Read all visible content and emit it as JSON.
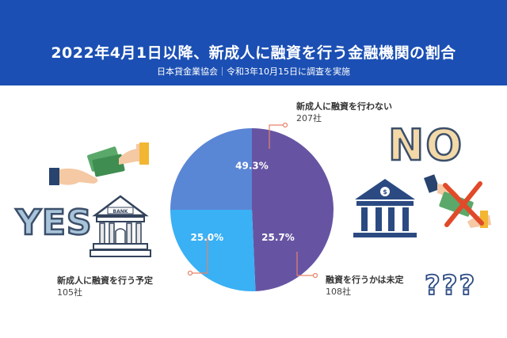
{
  "header": {
    "title": "2022年4月1日以降、新成人に融資を行う金融機関の割合",
    "subtitle": "日本貸金業協会｜令和3年10月15日に調査を実施"
  },
  "chart_data": {
    "type": "pie",
    "title": "2022年4月1日以降、新成人に融資を行う金融機関の割合",
    "slices": [
      {
        "label": "新成人に融資を行わない",
        "count": "207社",
        "value": 49.3,
        "value_label": "49.3%",
        "color": "#6654a3"
      },
      {
        "label": "融資を行うかは未定",
        "count": "108社",
        "value": 25.7,
        "value_label": "25.7%",
        "color": "#3ab0f5"
      },
      {
        "label": "新成人に融資を行う予定",
        "count": "105社",
        "value": 25.0,
        "value_label": "25.0%",
        "color": "#5a86d6"
      }
    ]
  },
  "decor": {
    "yes_text": "YES",
    "no_text": "NO",
    "bank_sign": "BANK",
    "question_marks": "???"
  },
  "colors": {
    "header_bg": "#1b4fb3",
    "connector": "#e6836a",
    "yes_fill": "#a9c4d9",
    "no_fill": "#f3d9a8"
  }
}
